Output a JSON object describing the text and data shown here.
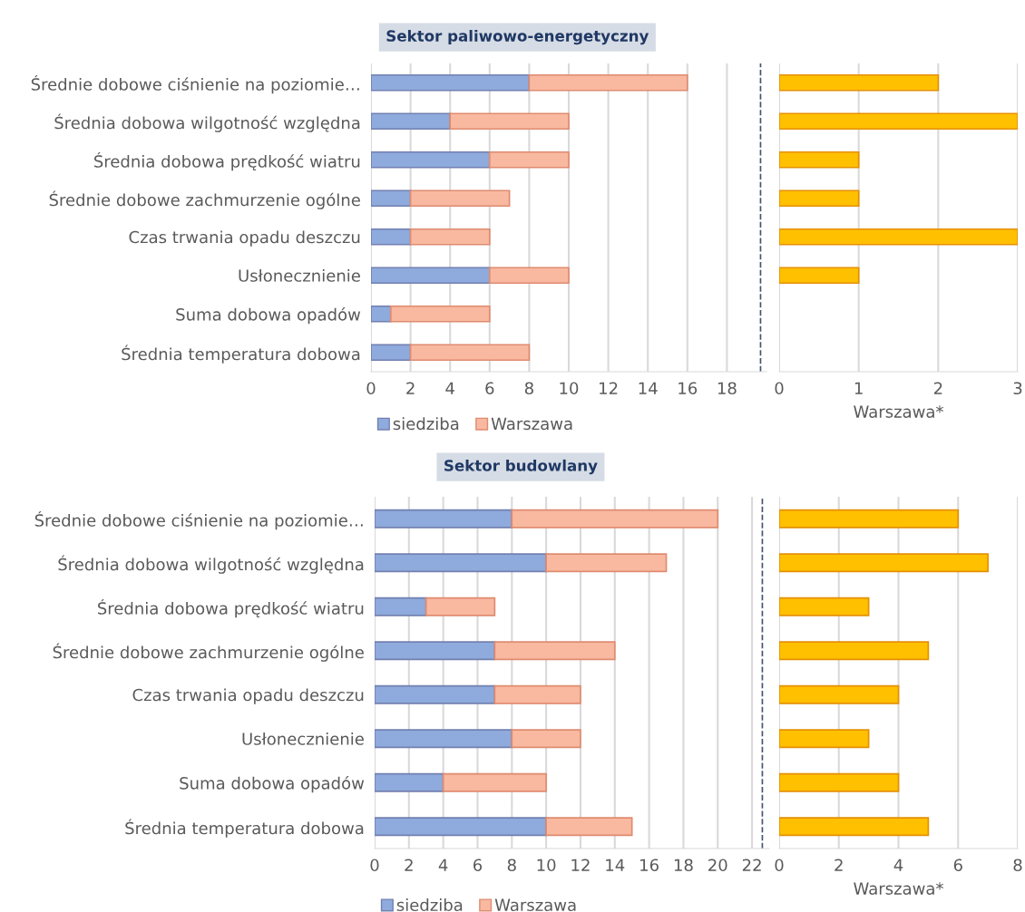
{
  "chart_data": [
    {
      "type": "bar",
      "orientation": "horizontal",
      "stacked": true,
      "title": "Sektor paliwowo-energetyczny",
      "categories": [
        "Średnie dobowe ciśnienie na poziomie…",
        "Średnia dobowa wilgotność względna",
        "Średnia dobowa prędkość wiatru",
        "Średnie dobowe zachmurzenie ogólne",
        "Czas trwania opadu deszczu",
        "Usłonecznienie",
        "Suma dobowa opadów",
        "Średnia temperatura dobowa"
      ],
      "series": [
        {
          "name": "siedziba",
          "color": "#8faadc",
          "values": [
            8,
            4,
            6,
            2,
            2,
            6,
            1,
            2
          ]
        },
        {
          "name": "Warszawa",
          "color": "#f8b9a0",
          "values": [
            8,
            6,
            4,
            5,
            4,
            4,
            5,
            6
          ]
        }
      ],
      "xlim": [
        0,
        20
      ],
      "xticks": [
        0,
        2,
        4,
        6,
        8,
        10,
        12,
        14,
        16,
        18
      ],
      "grid": "x",
      "legend": "bottom",
      "ref_lines": [
        {
          "axis": "x",
          "value": 19.7,
          "color": "#44546a",
          "line_style": "dashed"
        }
      ]
    },
    {
      "type": "bar",
      "orientation": "horizontal",
      "categories": [
        null,
        null,
        null,
        null,
        null,
        null,
        null,
        null
      ],
      "series": [
        {
          "color": "#ffc000",
          "values": [
            2,
            3,
            1,
            1,
            3,
            1,
            null,
            null
          ]
        }
      ],
      "xlim": [
        0,
        3
      ],
      "xticks": [
        0,
        1,
        2,
        3
      ],
      "xlabel": "Warszawa*",
      "grid": "x",
      "tick_labels": "x"
    },
    {
      "type": "bar",
      "orientation": "horizontal",
      "stacked": true,
      "title": "Sektor budowlany",
      "categories": [
        "Średnie dobowe ciśnienie na poziomie…",
        "Średnia dobowa wilgotność względna",
        "Średnia dobowa prędkość wiatru",
        "Średnie dobowe zachmurzenie ogólne",
        "Czas trwania opadu deszczu",
        "Usłonecznienie",
        "Suma dobowa opadów",
        "Średnia temperatura dobowa"
      ],
      "series": [
        {
          "name": "siedziba",
          "color": "#8faadc",
          "values": [
            8,
            10,
            3,
            7,
            7,
            8,
            4,
            10
          ]
        },
        {
          "name": "Warszawa",
          "color": "#f8b9a0",
          "values": [
            12,
            7,
            4,
            7,
            5,
            4,
            6,
            5
          ]
        }
      ],
      "xlim": [
        0,
        23
      ],
      "xticks": [
        0,
        2,
        4,
        6,
        8,
        10,
        12,
        14,
        16,
        18,
        20,
        22
      ],
      "grid": "x",
      "legend": "bottom",
      "ref_lines": [
        {
          "axis": "x",
          "value": 22.6,
          "color": "#44546a",
          "line_style": "dashed"
        }
      ]
    },
    {
      "type": "bar",
      "orientation": "horizontal",
      "categories": [
        null,
        null,
        null,
        null,
        null,
        null,
        null,
        null
      ],
      "series": [
        {
          "color": "#ffc000",
          "values": [
            6,
            7,
            3,
            5,
            4,
            3,
            4,
            5
          ]
        }
      ],
      "xlim": [
        0,
        8
      ],
      "xticks": [
        0,
        2,
        4,
        6,
        8
      ],
      "xlabel": "Warszawa*",
      "grid": "x",
      "tick_labels": "x"
    }
  ]
}
